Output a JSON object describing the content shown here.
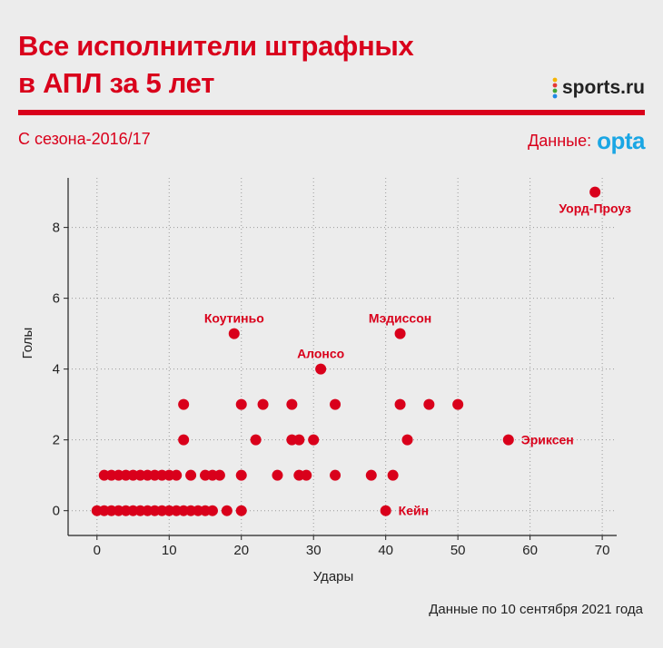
{
  "header": {
    "title_line1": "Все исполнители штрафных",
    "title_line2": "в АПЛ за 5 лет",
    "subtitle": "С сезона-2016/17",
    "source_label": "Данные:",
    "source_brand": "opta",
    "logo_text": "sports.ru",
    "footer_note": "Данные по 10 сентября 2021 года"
  },
  "colors": {
    "accent": "#d9001b",
    "point": "#d9001b",
    "opta": "#1aa6e4"
  },
  "chart_data": {
    "type": "scatter",
    "xlabel": "Удары",
    "ylabel": "Голы",
    "xlim": [
      -4,
      72
    ],
    "ylim": [
      -0.7,
      9.4
    ],
    "xticks": [
      0,
      10,
      20,
      30,
      40,
      50,
      60,
      70
    ],
    "yticks": [
      0,
      2,
      4,
      6,
      8
    ],
    "grid": "dotted",
    "points": [
      {
        "x": 0,
        "y": 0
      },
      {
        "x": 1,
        "y": 0
      },
      {
        "x": 2,
        "y": 0
      },
      {
        "x": 3,
        "y": 0
      },
      {
        "x": 4,
        "y": 0
      },
      {
        "x": 5,
        "y": 0
      },
      {
        "x": 6,
        "y": 0
      },
      {
        "x": 7,
        "y": 0
      },
      {
        "x": 8,
        "y": 0
      },
      {
        "x": 9,
        "y": 0
      },
      {
        "x": 10,
        "y": 0
      },
      {
        "x": 11,
        "y": 0
      },
      {
        "x": 12,
        "y": 0
      },
      {
        "x": 13,
        "y": 0
      },
      {
        "x": 14,
        "y": 0
      },
      {
        "x": 15,
        "y": 0
      },
      {
        "x": 16,
        "y": 0
      },
      {
        "x": 18,
        "y": 0
      },
      {
        "x": 20,
        "y": 0
      },
      {
        "x": 40,
        "y": 0
      },
      {
        "x": 1,
        "y": 1
      },
      {
        "x": 2,
        "y": 1
      },
      {
        "x": 3,
        "y": 1
      },
      {
        "x": 4,
        "y": 1
      },
      {
        "x": 5,
        "y": 1
      },
      {
        "x": 6,
        "y": 1
      },
      {
        "x": 7,
        "y": 1
      },
      {
        "x": 8,
        "y": 1
      },
      {
        "x": 9,
        "y": 1
      },
      {
        "x": 10,
        "y": 1
      },
      {
        "x": 11,
        "y": 1
      },
      {
        "x": 13,
        "y": 1
      },
      {
        "x": 15,
        "y": 1
      },
      {
        "x": 16,
        "y": 1
      },
      {
        "x": 17,
        "y": 1
      },
      {
        "x": 20,
        "y": 1
      },
      {
        "x": 25,
        "y": 1
      },
      {
        "x": 28,
        "y": 1
      },
      {
        "x": 29,
        "y": 1
      },
      {
        "x": 33,
        "y": 1
      },
      {
        "x": 38,
        "y": 1
      },
      {
        "x": 41,
        "y": 1
      },
      {
        "x": 12,
        "y": 2
      },
      {
        "x": 22,
        "y": 2
      },
      {
        "x": 27,
        "y": 2
      },
      {
        "x": 28,
        "y": 2
      },
      {
        "x": 30,
        "y": 2
      },
      {
        "x": 43,
        "y": 2
      },
      {
        "x": 57,
        "y": 2
      },
      {
        "x": 12,
        "y": 3
      },
      {
        "x": 20,
        "y": 3
      },
      {
        "x": 23,
        "y": 3
      },
      {
        "x": 27,
        "y": 3
      },
      {
        "x": 33,
        "y": 3
      },
      {
        "x": 42,
        "y": 3
      },
      {
        "x": 46,
        "y": 3
      },
      {
        "x": 50,
        "y": 3
      },
      {
        "x": 31,
        "y": 4
      },
      {
        "x": 19,
        "y": 5
      },
      {
        "x": 42,
        "y": 5
      },
      {
        "x": 69,
        "y": 9
      }
    ],
    "annotations": [
      {
        "label": "Уорд-Проуз",
        "x": 69,
        "y": 9,
        "pos": "below"
      },
      {
        "label": "Коутиньо",
        "x": 19,
        "y": 5,
        "pos": "above"
      },
      {
        "label": "Мэдиссон",
        "x": 42,
        "y": 5,
        "pos": "above"
      },
      {
        "label": "Алонсо",
        "x": 31,
        "y": 4,
        "pos": "above"
      },
      {
        "label": "Эриксен",
        "x": 57,
        "y": 2,
        "pos": "right"
      },
      {
        "label": "Кейн",
        "x": 40,
        "y": 0,
        "pos": "right"
      }
    ]
  }
}
